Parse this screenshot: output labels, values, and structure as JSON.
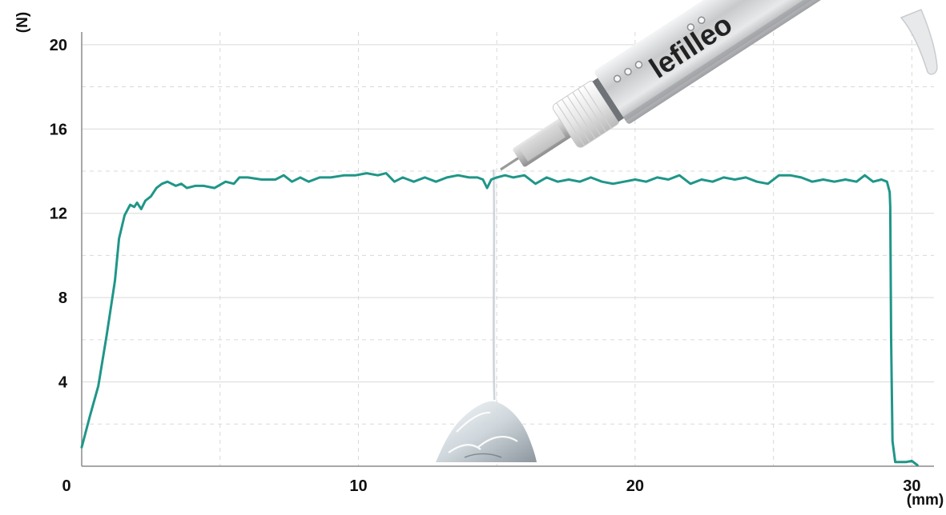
{
  "chart_data": {
    "type": "line",
    "title": "",
    "ylabel": "(N)",
    "xlabel": "(mm)",
    "xlim": [
      0,
      30.8
    ],
    "ylim": [
      0,
      20.6
    ],
    "x_ticks": [
      0,
      10,
      20,
      30
    ],
    "y_ticks": [
      4,
      8,
      12,
      16,
      20
    ],
    "grid": true,
    "series": [
      {
        "color": "#1f9688",
        "points": [
          [
            0.0,
            0.9
          ],
          [
            0.3,
            2.4
          ],
          [
            0.6,
            3.8
          ],
          [
            0.9,
            6.2
          ],
          [
            1.2,
            8.8
          ],
          [
            1.35,
            10.8
          ],
          [
            1.55,
            11.9
          ],
          [
            1.75,
            12.4
          ],
          [
            1.9,
            12.3
          ],
          [
            2.0,
            12.5
          ],
          [
            2.15,
            12.2
          ],
          [
            2.3,
            12.6
          ],
          [
            2.5,
            12.8
          ],
          [
            2.7,
            13.2
          ],
          [
            2.9,
            13.4
          ],
          [
            3.1,
            13.5
          ],
          [
            3.4,
            13.3
          ],
          [
            3.6,
            13.4
          ],
          [
            3.8,
            13.2
          ],
          [
            4.1,
            13.3
          ],
          [
            4.4,
            13.3
          ],
          [
            4.8,
            13.2
          ],
          [
            5.2,
            13.5
          ],
          [
            5.5,
            13.4
          ],
          [
            5.7,
            13.7
          ],
          [
            6.0,
            13.7
          ],
          [
            6.5,
            13.6
          ],
          [
            7.0,
            13.6
          ],
          [
            7.3,
            13.8
          ],
          [
            7.6,
            13.5
          ],
          [
            7.9,
            13.7
          ],
          [
            8.2,
            13.5
          ],
          [
            8.6,
            13.7
          ],
          [
            9.0,
            13.7
          ],
          [
            9.5,
            13.8
          ],
          [
            9.9,
            13.8
          ],
          [
            10.3,
            13.9
          ],
          [
            10.7,
            13.8
          ],
          [
            11.0,
            13.9
          ],
          [
            11.3,
            13.5
          ],
          [
            11.6,
            13.7
          ],
          [
            12.0,
            13.5
          ],
          [
            12.4,
            13.7
          ],
          [
            12.8,
            13.5
          ],
          [
            13.2,
            13.7
          ],
          [
            13.6,
            13.8
          ],
          [
            14.0,
            13.7
          ],
          [
            14.3,
            13.7
          ],
          [
            14.5,
            13.6
          ],
          [
            14.65,
            13.2
          ],
          [
            14.8,
            13.6
          ],
          [
            15.0,
            13.7
          ],
          [
            15.3,
            13.8
          ],
          [
            15.6,
            13.7
          ],
          [
            16.0,
            13.8
          ],
          [
            16.4,
            13.4
          ],
          [
            16.8,
            13.7
          ],
          [
            17.2,
            13.5
          ],
          [
            17.6,
            13.6
          ],
          [
            18.0,
            13.5
          ],
          [
            18.4,
            13.7
          ],
          [
            18.8,
            13.5
          ],
          [
            19.2,
            13.4
          ],
          [
            19.6,
            13.5
          ],
          [
            20.0,
            13.6
          ],
          [
            20.4,
            13.5
          ],
          [
            20.8,
            13.7
          ],
          [
            21.2,
            13.6
          ],
          [
            21.6,
            13.8
          ],
          [
            22.0,
            13.4
          ],
          [
            22.4,
            13.6
          ],
          [
            22.8,
            13.5
          ],
          [
            23.2,
            13.7
          ],
          [
            23.6,
            13.6
          ],
          [
            24.0,
            13.7
          ],
          [
            24.4,
            13.5
          ],
          [
            24.8,
            13.4
          ],
          [
            25.2,
            13.8
          ],
          [
            25.6,
            13.8
          ],
          [
            26.0,
            13.7
          ],
          [
            26.4,
            13.5
          ],
          [
            26.8,
            13.6
          ],
          [
            27.2,
            13.5
          ],
          [
            27.6,
            13.6
          ],
          [
            28.0,
            13.5
          ],
          [
            28.3,
            13.8
          ],
          [
            28.6,
            13.5
          ],
          [
            28.9,
            13.6
          ],
          [
            29.1,
            13.5
          ],
          [
            29.2,
            13.0
          ],
          [
            29.22,
            12.3
          ],
          [
            29.25,
            6.0
          ],
          [
            29.3,
            1.2
          ],
          [
            29.4,
            0.2
          ],
          [
            29.8,
            0.2
          ],
          [
            30.0,
            0.25
          ],
          [
            30.2,
            0.05
          ]
        ]
      }
    ]
  },
  "product": {
    "brand_text": "lefilleo",
    "colors": {
      "barrel": "#c8c9cb",
      "cap": "#f2f2f2",
      "needle": "#9a9a9a",
      "gel": "#dfe6ea"
    }
  },
  "colors": {
    "line": "#1f9688",
    "grid": "#d9d9d9",
    "axis": "#8c8c8c",
    "text": "#111111"
  }
}
